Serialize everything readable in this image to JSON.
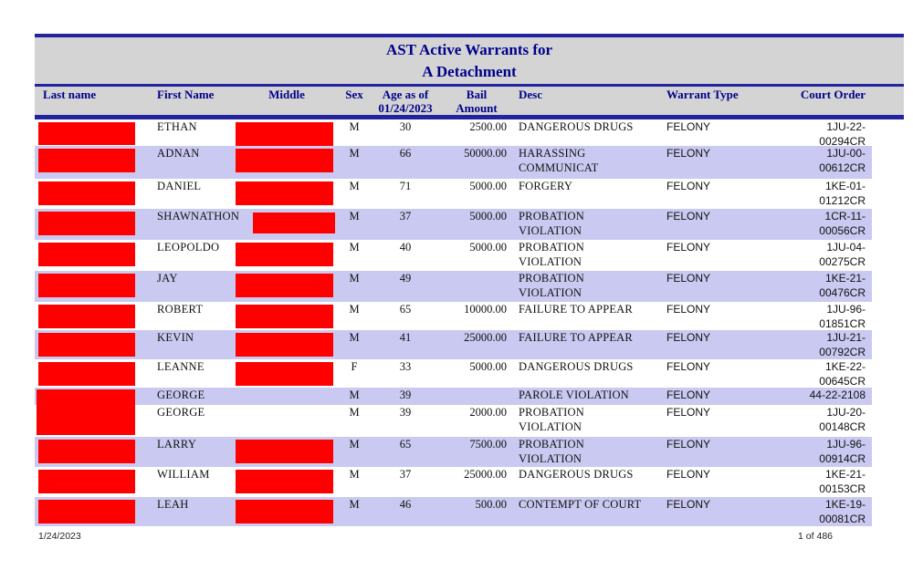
{
  "title": {
    "line1": "AST Active Warrants for",
    "line2": "A Detachment"
  },
  "columns": {
    "last_name": "Last name",
    "first_name": "First Name",
    "middle": "Middle",
    "sex": "Sex",
    "age": "Age as of\n01/24/2023",
    "bail": "Bail\nAmount",
    "desc": "Desc",
    "warrant_type": "Warrant Type",
    "court_order": "Court Order"
  },
  "rows": [
    {
      "first_name": "ETHAN",
      "sex": "M",
      "age": "30",
      "bail": "2500.00",
      "desc": "DANGEROUS DRUGS",
      "warrant_type": "FELONY",
      "court_order": "1JU-22-\n00294CR"
    },
    {
      "first_name": "ADNAN",
      "sex": "M",
      "age": "66",
      "bail": "50000.00",
      "desc": "HARASSING\nCOMMUNICAT",
      "warrant_type": "FELONY",
      "court_order": "1JU-00-\n00612CR"
    },
    {
      "first_name": "DANIEL",
      "sex": "M",
      "age": "71",
      "bail": "5000.00",
      "desc": "FORGERY",
      "warrant_type": "FELONY",
      "court_order": "1KE-01-\n01212CR"
    },
    {
      "first_name": "SHAWNATHON",
      "sex": "M",
      "age": "37",
      "bail": "5000.00",
      "desc": "PROBATION\nVIOLATION",
      "warrant_type": "FELONY",
      "court_order": "1CR-11-\n00056CR"
    },
    {
      "first_name": "LEOPOLDO",
      "sex": "M",
      "age": "40",
      "bail": "5000.00",
      "desc": "PROBATION\nVIOLATION",
      "warrant_type": "FELONY",
      "court_order": "1JU-04-\n00275CR"
    },
    {
      "first_name": "JAY",
      "sex": "M",
      "age": "49",
      "bail": "",
      "desc": "PROBATION\nVIOLATION",
      "warrant_type": "FELONY",
      "court_order": "1KE-21-\n00476CR"
    },
    {
      "first_name": "ROBERT",
      "sex": "M",
      "age": "65",
      "bail": "10000.00",
      "desc": "FAILURE TO APPEAR",
      "warrant_type": "FELONY",
      "court_order": "1JU-96-\n01851CR"
    },
    {
      "first_name": "KEVIN",
      "sex": "M",
      "age": "41",
      "bail": "25000.00",
      "desc": "FAILURE TO APPEAR",
      "warrant_type": "FELONY",
      "court_order": "1JU-21-\n00792CR"
    },
    {
      "first_name": "LEANNE",
      "sex": "F",
      "age": "33",
      "bail": "5000.00",
      "desc": "DANGEROUS DRUGS",
      "warrant_type": "FELONY",
      "court_order": "1KE-22-\n00645CR"
    },
    {
      "first_name": "GEORGE",
      "sex": "M",
      "age": "39",
      "bail": "",
      "desc": "PAROLE VIOLATION",
      "warrant_type": "FELONY",
      "court_order": "44-22-2108"
    },
    {
      "first_name": "GEORGE",
      "sex": "M",
      "age": "39",
      "bail": "2000.00",
      "desc": "PROBATION\nVIOLATION",
      "warrant_type": "FELONY",
      "court_order": "1JU-20-\n00148CR"
    },
    {
      "first_name": "LARRY",
      "sex": "M",
      "age": "65",
      "bail": "7500.00",
      "desc": "PROBATION\nVIOLATION",
      "warrant_type": "FELONY",
      "court_order": "1JU-96-\n00914CR"
    },
    {
      "first_name": "WILLIAM",
      "sex": "M",
      "age": "37",
      "bail": "25000.00",
      "desc": "DANGEROUS DRUGS",
      "warrant_type": "FELONY",
      "court_order": "1KE-21-\n00153CR"
    },
    {
      "first_name": "LEAH",
      "sex": "M",
      "age": "46",
      "bail": "500.00",
      "desc": "CONTEMPT OF COURT",
      "warrant_type": "FELONY",
      "court_order": "1KE-19-\n00081CR"
    }
  ],
  "footer": {
    "date": "1/24/2023",
    "page": "1 of 486"
  },
  "colors": {
    "navy_line": "#2323a0",
    "navy_text": "#00008b",
    "band_gray": "#d4d4d4",
    "row_lavender": "#c9c9f1",
    "redaction_red": "#ff0000"
  }
}
